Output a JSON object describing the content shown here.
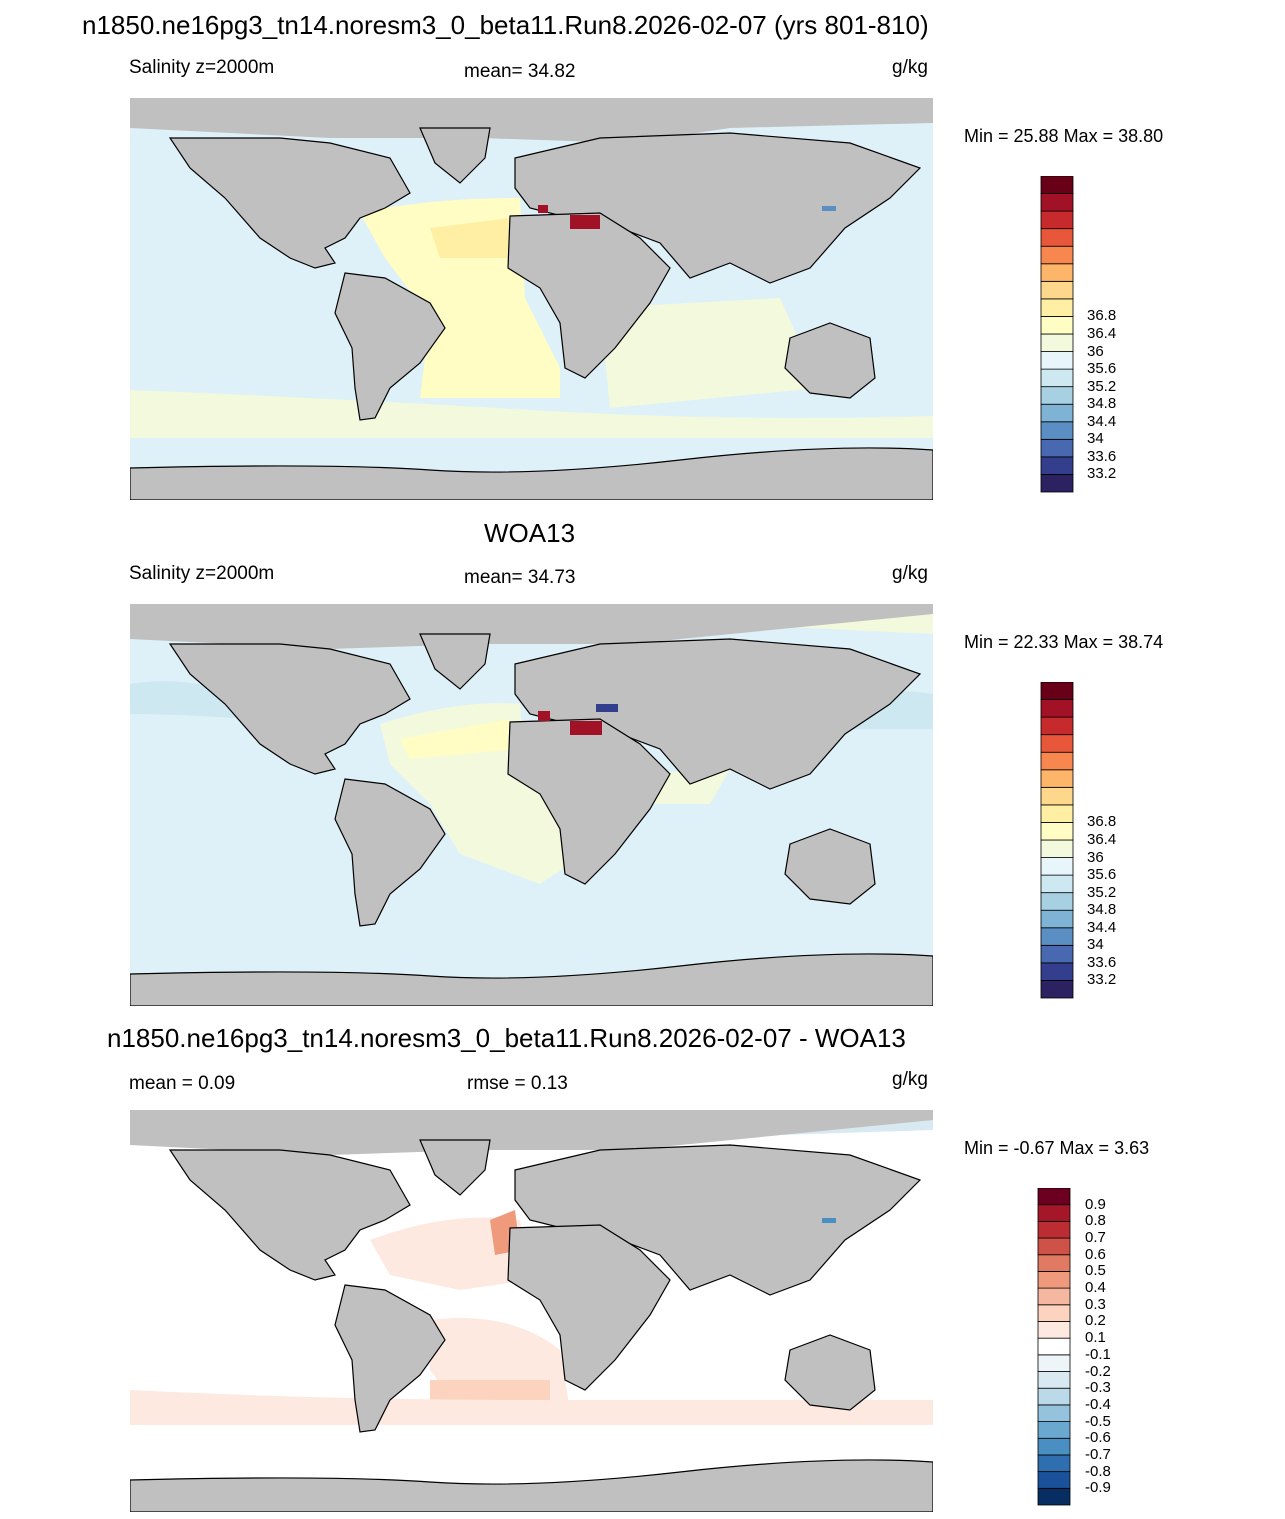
{
  "panels": [
    {
      "title": "n1850.ne16pg3_tn14.noresm3_0_beta11.Run8.2026-02-07 (yrs 801-810)",
      "left_label": "Salinity z=2000m",
      "center_label": "mean=  34.82",
      "units": "g/kg",
      "minmax": "Min =  25.88 Max =  38.80",
      "colorbar": {
        "colors": [
          "#2c2262",
          "#333f8c",
          "#4868b0",
          "#5b8ec2",
          "#7fb3d5",
          "#a7d0e3",
          "#cde8f1",
          "#e8f5fa",
          "#f3f9dc",
          "#fffcc4",
          "#ffefa5",
          "#fdd78b",
          "#fdb56a",
          "#f7874e",
          "#e8573a",
          "#c72a2c",
          "#a11226",
          "#680017"
        ],
        "labels": [
          "33.2",
          "33.6",
          "34",
          "34.4",
          "34.8",
          "35.2",
          "35.6",
          "36",
          "36.4",
          "36.8"
        ]
      }
    },
    {
      "title": "WOA13",
      "left_label": "Salinity z=2000m",
      "center_label": "mean=  34.73",
      "units": "g/kg",
      "minmax": "Min =  22.33 Max =  38.74",
      "colorbar": {
        "colors": [
          "#2c2262",
          "#333f8c",
          "#4868b0",
          "#5b8ec2",
          "#7fb3d5",
          "#a7d0e3",
          "#cde8f1",
          "#e8f5fa",
          "#f3f9dc",
          "#fffcc4",
          "#ffefa5",
          "#fdd78b",
          "#fdb56a",
          "#f7874e",
          "#e8573a",
          "#c72a2c",
          "#a11226",
          "#680017"
        ],
        "labels": [
          "33.2",
          "33.6",
          "34",
          "34.4",
          "34.8",
          "35.2",
          "35.6",
          "36",
          "36.4",
          "36.8"
        ]
      }
    },
    {
      "title": "n1850.ne16pg3_tn14.noresm3_0_beta11.Run8.2026-02-07 - WOA13",
      "left_label": "mean =   0.09",
      "center_label": "rmse =   0.13",
      "units": "g/kg",
      "minmax": "Min =  -0.67 Max =   3.63",
      "colorbar": {
        "colors": [
          "#062e62",
          "#1a519a",
          "#2f6fb0",
          "#4a8fc2",
          "#6ba8d0",
          "#95c3de",
          "#bcd9ea",
          "#d8e9f2",
          "#eef5f9",
          "#ffffff",
          "#fde9df",
          "#fbd3bf",
          "#f6b7a0",
          "#ef9a7c",
          "#e07a62",
          "#cf5248",
          "#bb2d33",
          "#a51628",
          "#6b0020"
        ],
        "labels": [
          "-0.9",
          "-0.8",
          "-0.7",
          "-0.6",
          "-0.5",
          "-0.4",
          "-0.3",
          "-0.2",
          "-0.1",
          "0.1",
          "0.2",
          "0.3",
          "0.4",
          "0.5",
          "0.6",
          "0.7",
          "0.8",
          "0.9"
        ]
      }
    }
  ],
  "colors": {
    "land": "#c0c0c0",
    "missing": "#c0c0c0",
    "coast": "#000000",
    "ocean_panel1": "#dff1f8",
    "atlantic_panel1": "#fffcc4",
    "ocean_panel2": "#dff1f8",
    "ocean_panel3": "#ffffff"
  }
}
